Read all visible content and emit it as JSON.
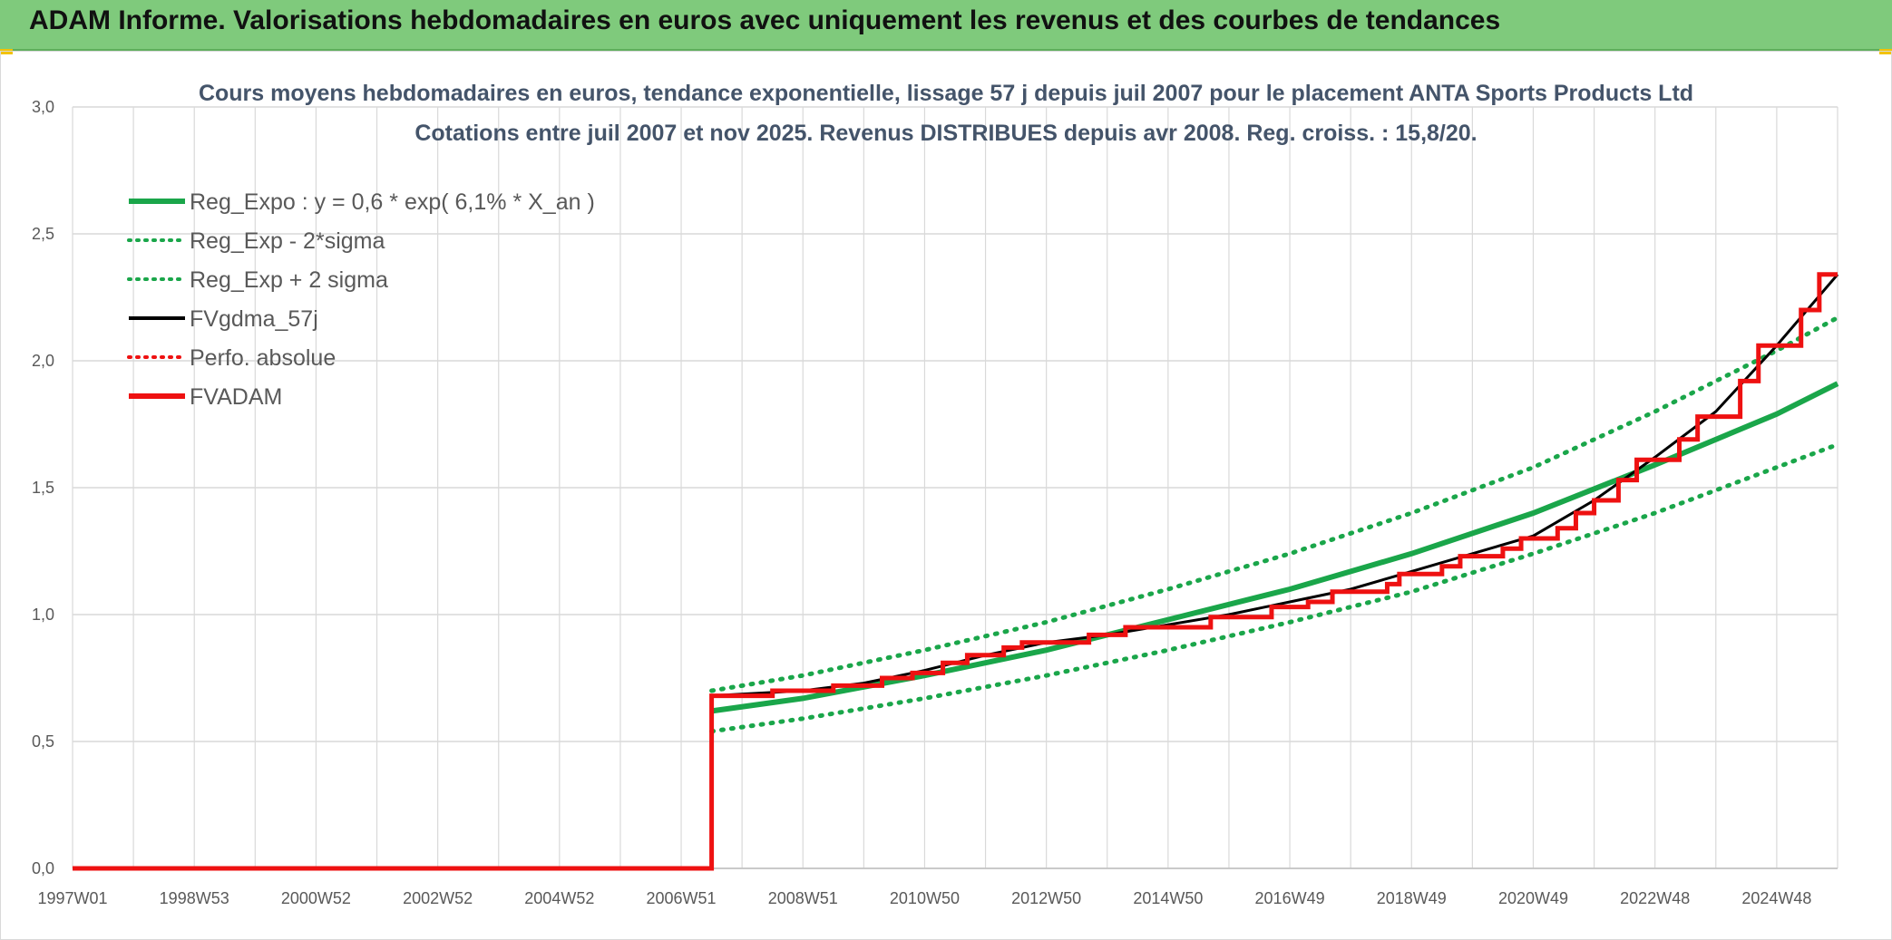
{
  "header": {
    "title": "ADAM Informe. Valorisations hebdomadaires en euros avec uniquement les revenus et des courbes de tendances"
  },
  "colors": {
    "banner": "#7fca7c",
    "green": "#1aa64a",
    "black": "#000000",
    "red": "#ee1111",
    "grid": "#d9d9d9"
  },
  "chart_data": {
    "type": "line",
    "title": "Cours moyens hebdomadaires en euros, tendance exponentielle, lissage 57 j depuis juil 2007 pour le placement ANTA Sports Products Ltd",
    "subtitle": "Cotations entre juil 2007 et nov 2025. Revenus DISTRIBUES depuis avr 2008. Reg. croiss. : 15,8/20.",
    "xlabel": "",
    "ylabel": "",
    "x_tick_labels": [
      "1997W01",
      "1998W53",
      "2000W52",
      "2002W52",
      "2004W52",
      "2006W51",
      "2008W51",
      "2010W50",
      "2012W50",
      "2014W50",
      "2016W49",
      "2018W49",
      "2020W49",
      "2022W48",
      "2024W48"
    ],
    "x_tick_years": [
      1997.0,
      1999.0,
      2001.0,
      2003.0,
      2005.0,
      2007.0,
      2009.0,
      2011.0,
      2013.0,
      2015.0,
      2017.0,
      2019.0,
      2021.0,
      2023.0,
      2025.0
    ],
    "xlim": [
      1997.0,
      2026.0
    ],
    "ylim": [
      0,
      3.0
    ],
    "y_ticks": [
      0,
      0.5,
      1.0,
      1.5,
      2.0,
      2.5,
      3.0
    ],
    "y_tick_labels": [
      "0,0",
      "0,5",
      "1,0",
      "1,5",
      "2,0",
      "2,5",
      "3,0"
    ],
    "grid": true,
    "legend_position": "top-left",
    "legend": [
      {
        "name": "Reg_Expo : y = 0,6 * exp( 6,1% *  X_an )",
        "color": "#1aa64a",
        "style": "solid-thick"
      },
      {
        "name": "Reg_Exp - 2*sigma",
        "color": "#1aa64a",
        "style": "dotted"
      },
      {
        "name": "Reg_Exp + 2 sigma",
        "color": "#1aa64a",
        "style": "dotted"
      },
      {
        "name": "FVgdma_57j",
        "color": "#000000",
        "style": "solid"
      },
      {
        "name": "Perfo. absolue",
        "color": "#ee1111",
        "style": "dotted"
      },
      {
        "name": "FVADAM",
        "color": "#ee1111",
        "style": "solid-thick"
      }
    ],
    "series": [
      {
        "name": "Reg_Expo : y = 0,6 * exp( 6,1% *  X_an )",
        "x": [
          2007.5,
          2009,
          2011,
          2013,
          2015,
          2017,
          2019,
          2021,
          2023,
          2025,
          2026
        ],
        "values": [
          0.62,
          0.67,
          0.76,
          0.86,
          0.98,
          1.1,
          1.24,
          1.4,
          1.59,
          1.79,
          1.91
        ]
      },
      {
        "name": "Reg_Exp - 2*sigma",
        "x": [
          2007.5,
          2009,
          2011,
          2013,
          2015,
          2017,
          2019,
          2021,
          2023,
          2025,
          2026
        ],
        "values": [
          0.54,
          0.59,
          0.67,
          0.76,
          0.86,
          0.97,
          1.09,
          1.24,
          1.4,
          1.58,
          1.67
        ]
      },
      {
        "name": "Reg_Exp + 2 sigma",
        "x": [
          2007.5,
          2009,
          2011,
          2013,
          2015,
          2017,
          2019,
          2021,
          2023,
          2025,
          2026
        ],
        "values": [
          0.7,
          0.76,
          0.86,
          0.97,
          1.1,
          1.24,
          1.4,
          1.58,
          1.8,
          2.04,
          2.17
        ]
      },
      {
        "name": "FVgdma_57j",
        "x": [
          1997.0,
          2007.5,
          2007.5,
          2009,
          2010,
          2011,
          2012,
          2013,
          2014,
          2015,
          2016,
          2017,
          2018,
          2019,
          2020,
          2021,
          2022,
          2023,
          2024,
          2025,
          2026
        ],
        "values": [
          0,
          0,
          0.68,
          0.7,
          0.73,
          0.78,
          0.84,
          0.89,
          0.92,
          0.96,
          1.0,
          1.05,
          1.1,
          1.17,
          1.24,
          1.31,
          1.45,
          1.62,
          1.8,
          2.06,
          2.34
        ]
      },
      {
        "name": "FVADAM",
        "steps": [
          [
            1997.0,
            0
          ],
          [
            2007.5,
            0
          ],
          [
            2007.5,
            0.68
          ],
          [
            2008.5,
            0.68
          ],
          [
            2008.5,
            0.7
          ],
          [
            2009.5,
            0.7
          ],
          [
            2009.5,
            0.72
          ],
          [
            2010.3,
            0.72
          ],
          [
            2010.3,
            0.75
          ],
          [
            2010.8,
            0.75
          ],
          [
            2010.8,
            0.77
          ],
          [
            2011.3,
            0.77
          ],
          [
            2011.3,
            0.81
          ],
          [
            2011.7,
            0.81
          ],
          [
            2011.7,
            0.84
          ],
          [
            2012.3,
            0.84
          ],
          [
            2012.3,
            0.87
          ],
          [
            2012.6,
            0.87
          ],
          [
            2012.6,
            0.89
          ],
          [
            2013.7,
            0.89
          ],
          [
            2013.7,
            0.92
          ],
          [
            2014.3,
            0.92
          ],
          [
            2014.3,
            0.95
          ],
          [
            2015.7,
            0.95
          ],
          [
            2015.7,
            0.99
          ],
          [
            2016.7,
            0.99
          ],
          [
            2016.7,
            1.03
          ],
          [
            2017.3,
            1.03
          ],
          [
            2017.3,
            1.05
          ],
          [
            2017.7,
            1.05
          ],
          [
            2017.7,
            1.09
          ],
          [
            2018.6,
            1.09
          ],
          [
            2018.6,
            1.12
          ],
          [
            2018.8,
            1.12
          ],
          [
            2018.8,
            1.16
          ],
          [
            2019.5,
            1.16
          ],
          [
            2019.5,
            1.19
          ],
          [
            2019.8,
            1.19
          ],
          [
            2019.8,
            1.23
          ],
          [
            2020.5,
            1.23
          ],
          [
            2020.5,
            1.26
          ],
          [
            2020.8,
            1.26
          ],
          [
            2020.8,
            1.3
          ],
          [
            2021.4,
            1.3
          ],
          [
            2021.4,
            1.34
          ],
          [
            2021.7,
            1.34
          ],
          [
            2021.7,
            1.4
          ],
          [
            2022.0,
            1.4
          ],
          [
            2022.0,
            1.45
          ],
          [
            2022.4,
            1.45
          ],
          [
            2022.4,
            1.53
          ],
          [
            2022.7,
            1.53
          ],
          [
            2022.7,
            1.61
          ],
          [
            2023.4,
            1.61
          ],
          [
            2023.4,
            1.69
          ],
          [
            2023.7,
            1.69
          ],
          [
            2023.7,
            1.78
          ],
          [
            2024.4,
            1.78
          ],
          [
            2024.4,
            1.92
          ],
          [
            2024.7,
            1.92
          ],
          [
            2024.7,
            2.06
          ],
          [
            2025.4,
            2.06
          ],
          [
            2025.4,
            2.2
          ],
          [
            2025.7,
            2.2
          ],
          [
            2025.7,
            2.34
          ],
          [
            2026.0,
            2.34
          ]
        ]
      }
    ]
  }
}
